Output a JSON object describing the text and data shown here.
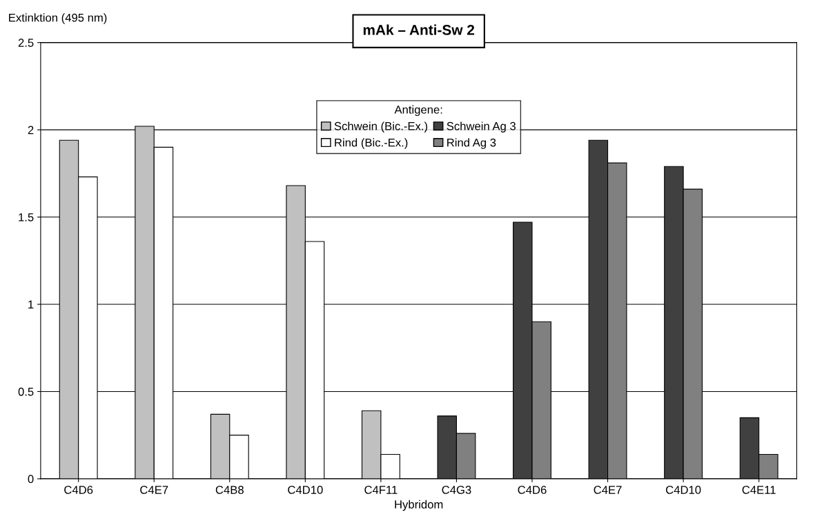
{
  "chart_data": {
    "type": "bar",
    "title": "mAk – Anti-Sw 2",
    "xlabel": "Hybridom",
    "ylabel": "Extinktion (495 nm)",
    "legend_title": "Antigene:",
    "categories": [
      "C4D6",
      "C4E7",
      "C4B8",
      "C4D10",
      "C4F11",
      "C4G3",
      "C4D6",
      "C4E7",
      "C4D10",
      "C4E11"
    ],
    "series": [
      {
        "name": "Schwein (Bic.-Ex.)",
        "color": "#c0c0c0",
        "values": [
          1.94,
          2.02,
          0.37,
          1.68,
          0.39,
          null,
          null,
          null,
          null,
          null
        ]
      },
      {
        "name": "Rind (Bic.-Ex.)",
        "color": "#ffffff",
        "values": [
          1.73,
          1.9,
          0.25,
          1.36,
          0.14,
          null,
          null,
          null,
          null,
          null
        ]
      },
      {
        "name": "Schwein Ag 3",
        "color": "#404040",
        "values": [
          null,
          null,
          null,
          null,
          null,
          0.36,
          1.47,
          1.94,
          1.79,
          0.35
        ]
      },
      {
        "name": "Rind Ag 3",
        "color": "#808080",
        "values": [
          null,
          null,
          null,
          null,
          null,
          0.26,
          0.9,
          1.81,
          1.66,
          0.14
        ]
      }
    ],
    "ylim": [
      0,
      2.5
    ],
    "yticks": [
      0,
      0.5,
      1,
      1.5,
      2,
      2.5
    ],
    "grid": "y",
    "legend": "top"
  }
}
